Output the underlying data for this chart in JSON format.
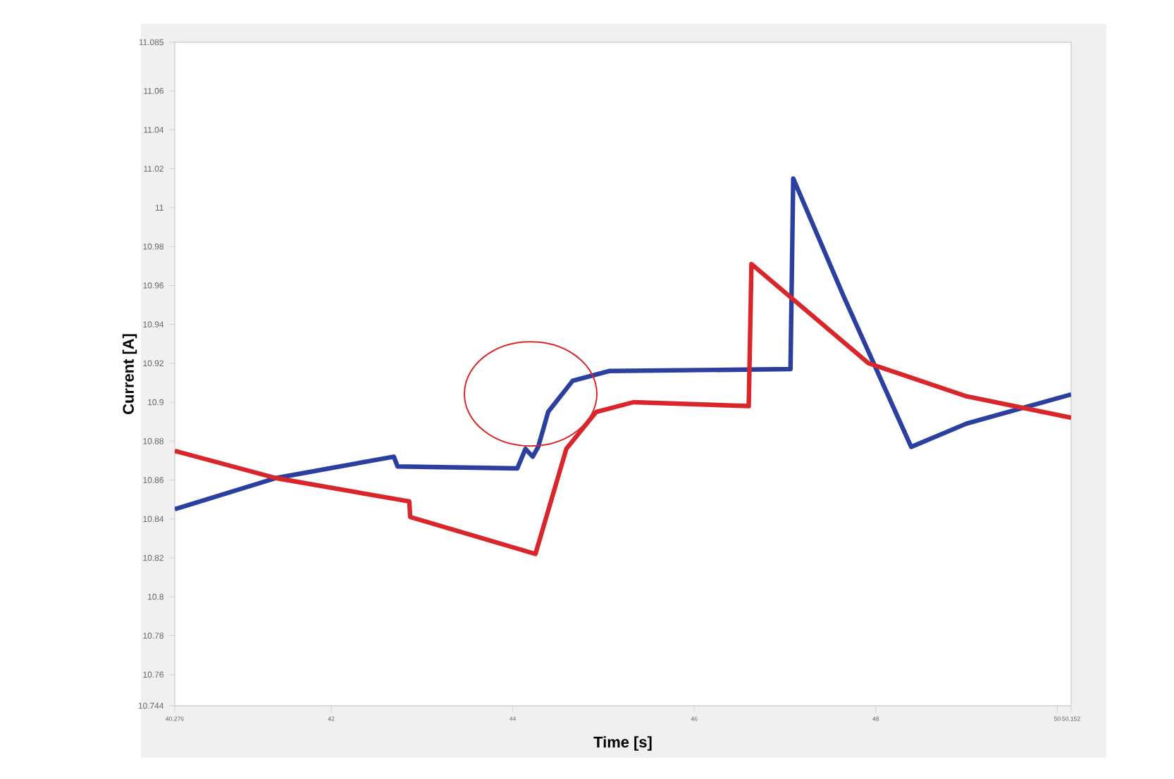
{
  "chart_data": {
    "type": "line",
    "xlabel": "Time [s]",
    "ylabel": "Current [A]",
    "xlim": [
      40.276,
      50.152
    ],
    "ylim": [
      10.744,
      11.085
    ],
    "xticks": [
      40.276,
      42,
      44,
      46,
      48,
      50,
      50.152
    ],
    "yticks": [
      10.744,
      10.76,
      10.78,
      10.8,
      10.82,
      10.84,
      10.86,
      10.88,
      10.9,
      10.92,
      10.94,
      10.96,
      10.98,
      11,
      11.02,
      11.04,
      11.06,
      11.085
    ],
    "grid": false,
    "series": [
      {
        "color": "#2b3f9e",
        "x": [
          40.276,
          41.39,
          42.69,
          42.73,
          44.05,
          44.14,
          44.22,
          44.28,
          44.39,
          44.66,
          45.06,
          47.06,
          47.09,
          47.64,
          48.39,
          49.0,
          50.152
        ],
        "values": [
          10.845,
          10.861,
          10.872,
          10.867,
          10.866,
          10.876,
          10.872,
          10.877,
          10.895,
          10.911,
          10.916,
          10.917,
          11.015,
          10.955,
          10.877,
          10.889,
          10.904
        ]
      },
      {
        "color": "#d9262a",
        "x": [
          40.276,
          41.39,
          42.86,
          42.87,
          44.25,
          44.59,
          44.92,
          45.33,
          46.6,
          46.63,
          47.92,
          49.0,
          50.152
        ],
        "values": [
          10.875,
          10.861,
          10.849,
          10.841,
          10.822,
          10.876,
          10.895,
          10.9,
          10.898,
          10.971,
          10.92,
          10.903,
          10.892
        ]
      }
    ]
  }
}
